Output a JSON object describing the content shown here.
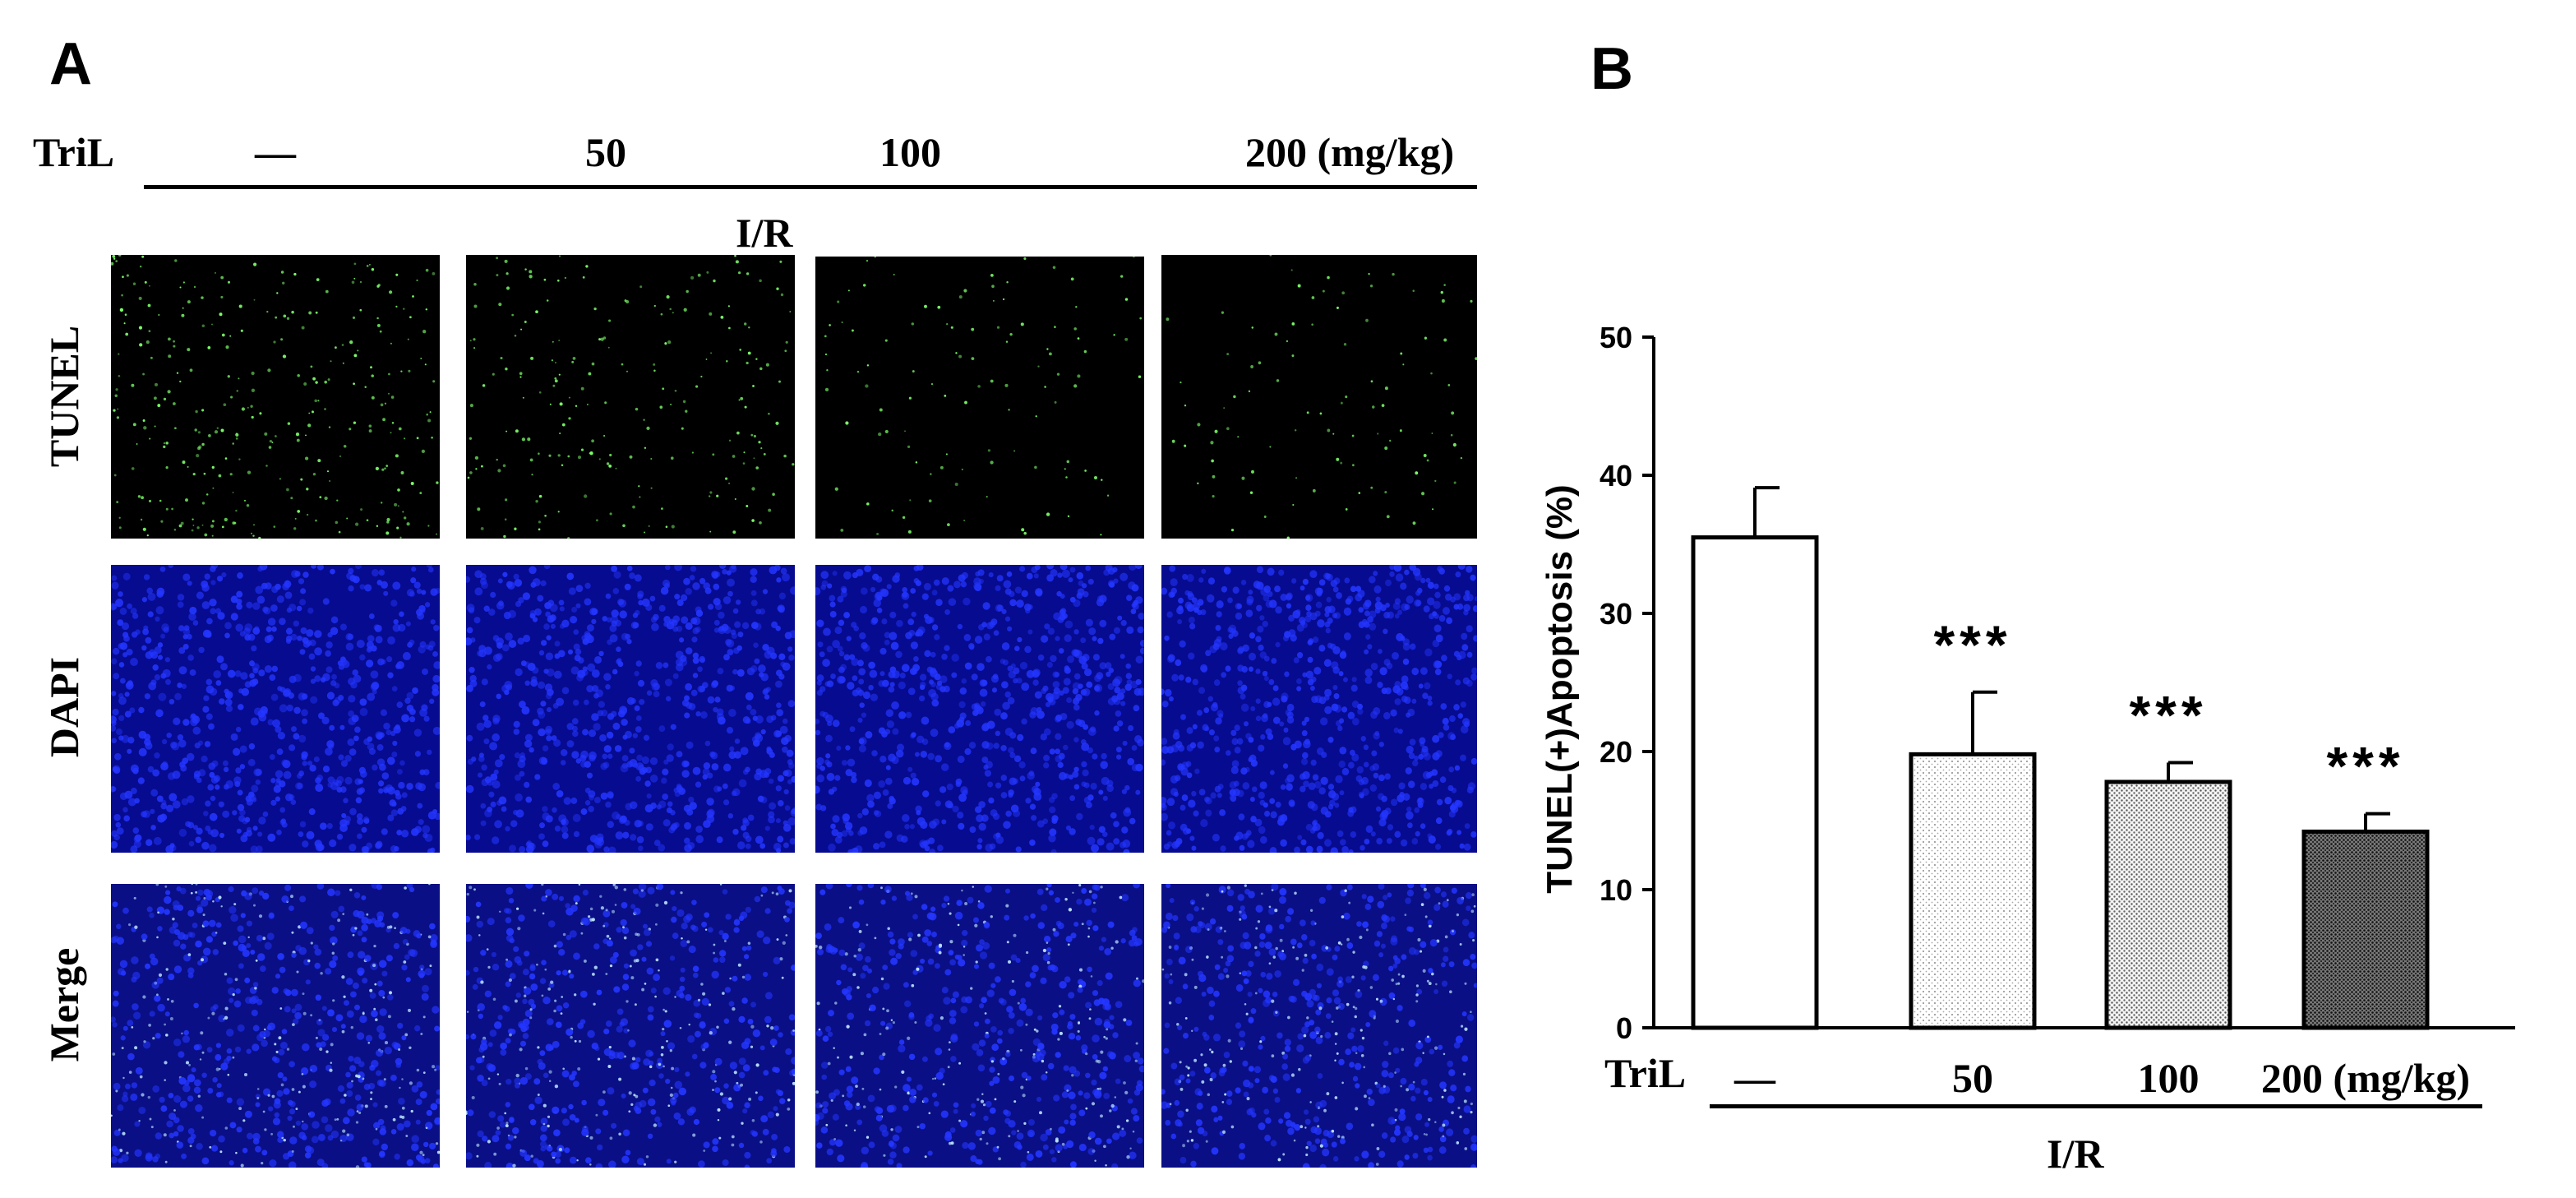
{
  "panel_a": {
    "letter": "A",
    "treatment_label": "TriL",
    "doses": [
      "—",
      "50",
      "100",
      "200 (mg/kg)"
    ],
    "group_label": "I/R",
    "row_labels": [
      "TUNEL",
      "DAPI",
      "Merge"
    ],
    "colors": {
      "tunel_dot": "#7dff6a",
      "dapi_bg": "#070b8f",
      "dapi_dot": "#2436ff",
      "merge_dot": "#bfe8ff"
    }
  },
  "panel_b": {
    "letter": "B"
  },
  "chart_data": {
    "type": "bar",
    "categories": [
      "—",
      "50",
      "100",
      "200 (mg/kg)"
    ],
    "category_prefix": "TriL",
    "group_label": "I/R",
    "values": [
      35.5,
      19.8,
      17.8,
      14.2
    ],
    "errors": [
      3.6,
      4.5,
      1.4,
      1.3
    ],
    "annotations": [
      "",
      "***",
      "***",
      "***"
    ],
    "fills": [
      "white",
      "light-dotted",
      "medium-dotted",
      "dark-dotted"
    ],
    "ylabel": "TUNEL(+)Apoptosis (%)",
    "ylim": [
      0,
      50
    ],
    "yticks": [
      0,
      10,
      20,
      30,
      40,
      50
    ],
    "grid": false
  }
}
